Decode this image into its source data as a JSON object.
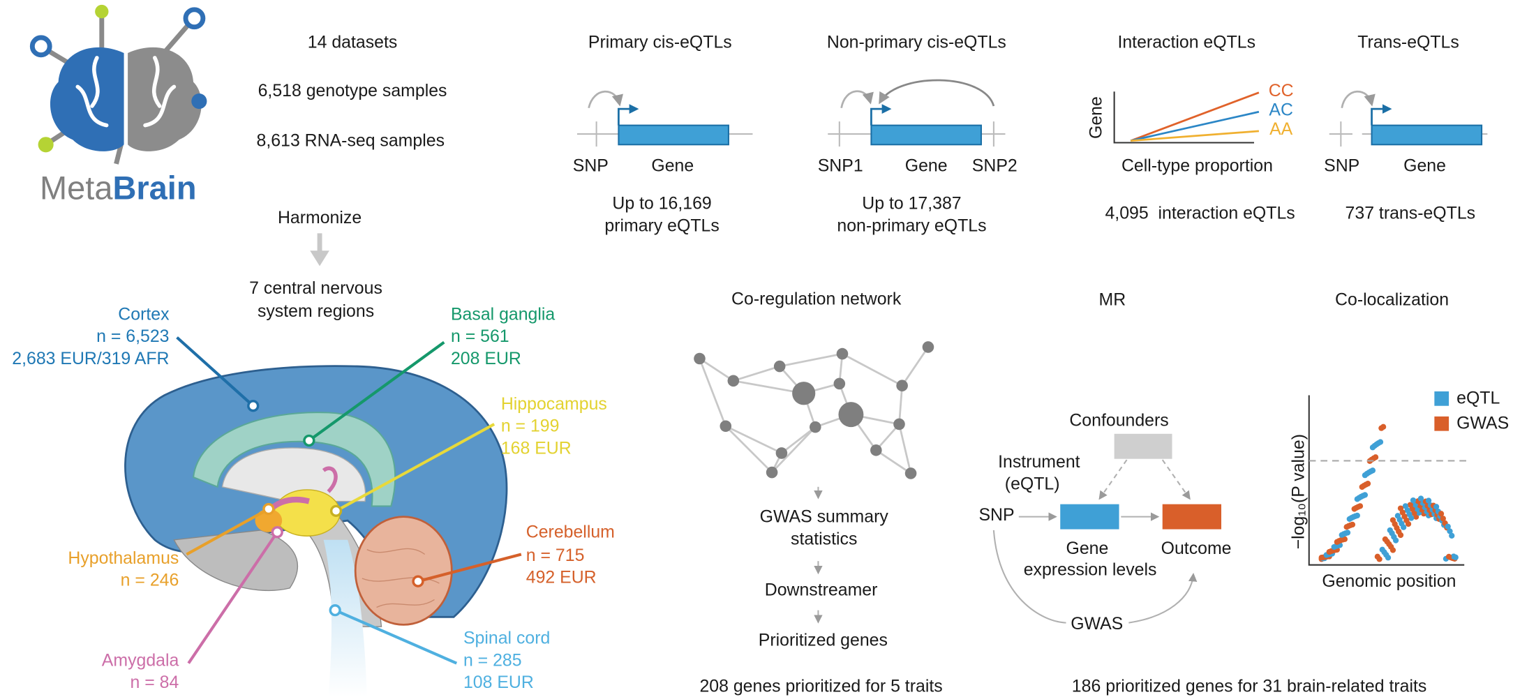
{
  "logo": {
    "meta": "Meta",
    "brain": "Brain"
  },
  "summary": {
    "datasets": "14 datasets",
    "genotype": "6,518 genotype samples",
    "rnaseq": "8,613 RNA-seq samples",
    "step": "Harmonize",
    "regions_title": [
      "7 central nervous",
      "system regions"
    ]
  },
  "regions": [
    {
      "name": "Cortex",
      "n": "n = 6,523",
      "ancestry": "2,683 EUR/319 AFR"
    },
    {
      "name": "Basal ganglia",
      "n": "n = 561",
      "ancestry": "208 EUR"
    },
    {
      "name": "Hippocampus",
      "n": "n = 199",
      "ancestry": "168 EUR"
    },
    {
      "name": "Cerebellum",
      "n": "n = 715",
      "ancestry": "492 EUR"
    },
    {
      "name": "Spinal cord",
      "n": "n = 285",
      "ancestry": "108 EUR"
    },
    {
      "name": "Hypothalamus",
      "n": "n = 246"
    },
    {
      "name": "Amygdala",
      "n": "n = 84"
    }
  ],
  "eqtl_types": [
    {
      "title": "Primary cis-eQTLs",
      "labels": [
        "SNP",
        "Gene"
      ],
      "result": [
        "Up to 16,169",
        "primary eQTLs"
      ]
    },
    {
      "title": "Non-primary cis-eQTLs",
      "labels": [
        "SNP1",
        "Gene",
        "SNP2"
      ],
      "result": [
        "Up to 17,387",
        "non-primary eQTLs"
      ]
    },
    {
      "title": "Interaction eQTLs",
      "y_label": "Gene",
      "x_label": "Cell-type proportion",
      "genotypes": [
        "CC",
        "AC",
        "AA"
      ],
      "result": [
        "4,095  interaction eQTLs"
      ]
    },
    {
      "title": "Trans-eQTLs",
      "labels": [
        "SNP",
        "Gene"
      ],
      "result": [
        "737 trans-eQTLs"
      ]
    }
  ],
  "coregulation": {
    "title": "Co-regulation network",
    "steps": [
      [
        "GWAS summary",
        "statistics"
      ],
      [
        "Downstreamer"
      ],
      [
        "Prioritized genes"
      ]
    ],
    "result": "208 genes prioritized for 5 traits"
  },
  "mr": {
    "title": "MR",
    "confounders": "Confounders",
    "instrument": [
      "Instrument",
      "(eQTL)"
    ],
    "snp": "SNP",
    "exposure": [
      "Gene",
      "expression levels"
    ],
    "outcome": "Outcome",
    "gwas": "GWAS",
    "result": "186 prioritized genes for 31 brain-related traits"
  },
  "colocalization": {
    "title": "Co-localization",
    "y_label": "−log₁₀(P value)",
    "x_label": "Genomic position",
    "legend": [
      "eQTL",
      "GWAS"
    ]
  }
}
